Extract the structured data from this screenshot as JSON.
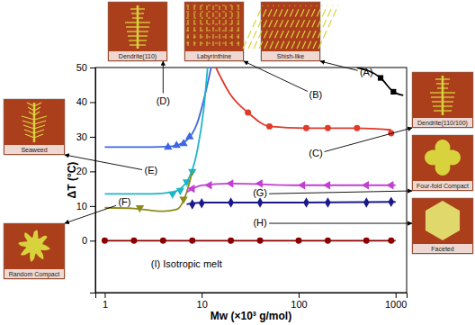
{
  "chart_data": {
    "type": "scatter",
    "xlabel": "Mw (×10³ g/mol)",
    "ylabel": "ΔT (°C)",
    "log": "x",
    "xlim": [
      0.8,
      1300
    ],
    "xticks": [
      1,
      10,
      100,
      1000
    ],
    "ylim": [
      -15,
      50
    ],
    "yticks": [
      0,
      10,
      20,
      30,
      40,
      50
    ],
    "series": [
      {
        "color": "#000000",
        "marker": "square",
        "x": [
          700,
          950
        ],
        "values": [
          47,
          43
        ],
        "fit": {
          "x": [
            400,
            700,
            950,
            1200
          ],
          "values": [
            50,
            47,
            43,
            42
          ]
        }
      },
      {
        "color": "#e03a2a",
        "marker": "circle",
        "x": [
          30,
          50,
          120,
          200,
          400,
          900
        ],
        "values": [
          37,
          33,
          32.5,
          32.5,
          32.5,
          31
        ],
        "fit": {
          "x": [
            14,
            20,
            30,
            50,
            120,
            400,
            900
          ],
          "values": [
            50,
            42,
            37,
            33,
            32.5,
            32.5,
            32
          ]
        }
      },
      {
        "color": "#3f66e0",
        "marker": "triangle-up",
        "x": [
          4.5,
          5.5,
          6.5,
          7.5
        ],
        "values": [
          27,
          27.5,
          28,
          30
        ],
        "fit": {
          "x": [
            1,
            3,
            5,
            7,
            9,
            11,
            12.5
          ],
          "values": [
            27,
            27,
            27.3,
            29,
            34,
            43,
            50
          ]
        }
      },
      {
        "color": "#1fb5c8",
        "marker": "triangle-down",
        "x": [
          5,
          6,
          7,
          8
        ],
        "values": [
          13.5,
          14.5,
          17,
          20
        ],
        "fit": {
          "x": [
            1,
            3,
            5,
            7,
            9,
            10.5,
            11.5
          ],
          "values": [
            13.5,
            13.5,
            14,
            17,
            26,
            38,
            50
          ]
        }
      },
      {
        "color": "#8c8c1a",
        "marker": "triangle-down",
        "x": [
          2.3,
          6.5
        ],
        "values": [
          9.5,
          12
        ],
        "fit": {
          "x": [
            1,
            2,
            4,
            5.5,
            7,
            8
          ],
          "values": [
            9.5,
            9.3,
            8.5,
            9,
            14,
            20
          ]
        }
      },
      {
        "color": "#c040d0",
        "marker": "triangle-left",
        "x": [
          8,
          12,
          20,
          40,
          110,
          200,
          500,
          900
        ],
        "values": [
          15,
          16,
          16.5,
          16.5,
          16,
          16,
          16,
          16
        ],
        "fit": {
          "x": [
            7,
            10,
            20,
            100,
            1000
          ],
          "values": [
            14,
            16,
            16.5,
            16,
            16
          ]
        }
      },
      {
        "color": "#1a1a8a",
        "marker": "diamond",
        "x": [
          8,
          10,
          20,
          40,
          120,
          200,
          500,
          900
        ],
        "values": [
          10.5,
          10.8,
          11,
          11,
          11,
          11,
          11,
          11.2
        ],
        "fit": {
          "x": [
            7,
            10,
            100,
            1000
          ],
          "values": [
            10.5,
            11,
            11,
            11.2
          ]
        }
      },
      {
        "color": "#8b0000",
        "marker": "circle",
        "x": [
          1,
          2,
          4,
          8,
          20,
          40,
          100,
          200,
          500,
          900
        ],
        "values": [
          0,
          0,
          0,
          0,
          0,
          0,
          0,
          0,
          0,
          0
        ],
        "fit": {
          "x": [
            1,
            1000
          ],
          "values": [
            0,
            0
          ]
        }
      }
    ],
    "annotations": [
      {
        "text": "(A)",
        "x": 500,
        "y": 48.5
      },
      {
        "text": "(B)",
        "x": 150,
        "y": 42
      },
      {
        "text": "(C)",
        "x": 150,
        "y": 25
      },
      {
        "text": "(D)",
        "x": 4,
        "y": 40
      },
      {
        "text": "(E)",
        "x": 3,
        "y": 20
      },
      {
        "text": "(F)",
        "x": 1.6,
        "y": 11
      },
      {
        "text": "(G)",
        "x": 40,
        "y": 13.5
      },
      {
        "text": "(H)",
        "x": 40,
        "y": 5
      },
      {
        "text": "(I) Isotropic melt",
        "x": 3,
        "y": -7
      }
    ],
    "insets": [
      {
        "label": "Dendrite(110)",
        "annotation": 3
      },
      {
        "label": "Labyrinthine",
        "annotation": 1
      },
      {
        "label": "Shish-like",
        "annotation": 0
      },
      {
        "label": "Dendrite(110/100)",
        "annotation": 2
      },
      {
        "label": "Four-fold Compact",
        "annotation": 6
      },
      {
        "label": "Faceted",
        "annotation": 7
      },
      {
        "label": "Seaweed",
        "annotation": 4
      },
      {
        "label": "Random Compact",
        "annotation": 5
      }
    ]
  }
}
